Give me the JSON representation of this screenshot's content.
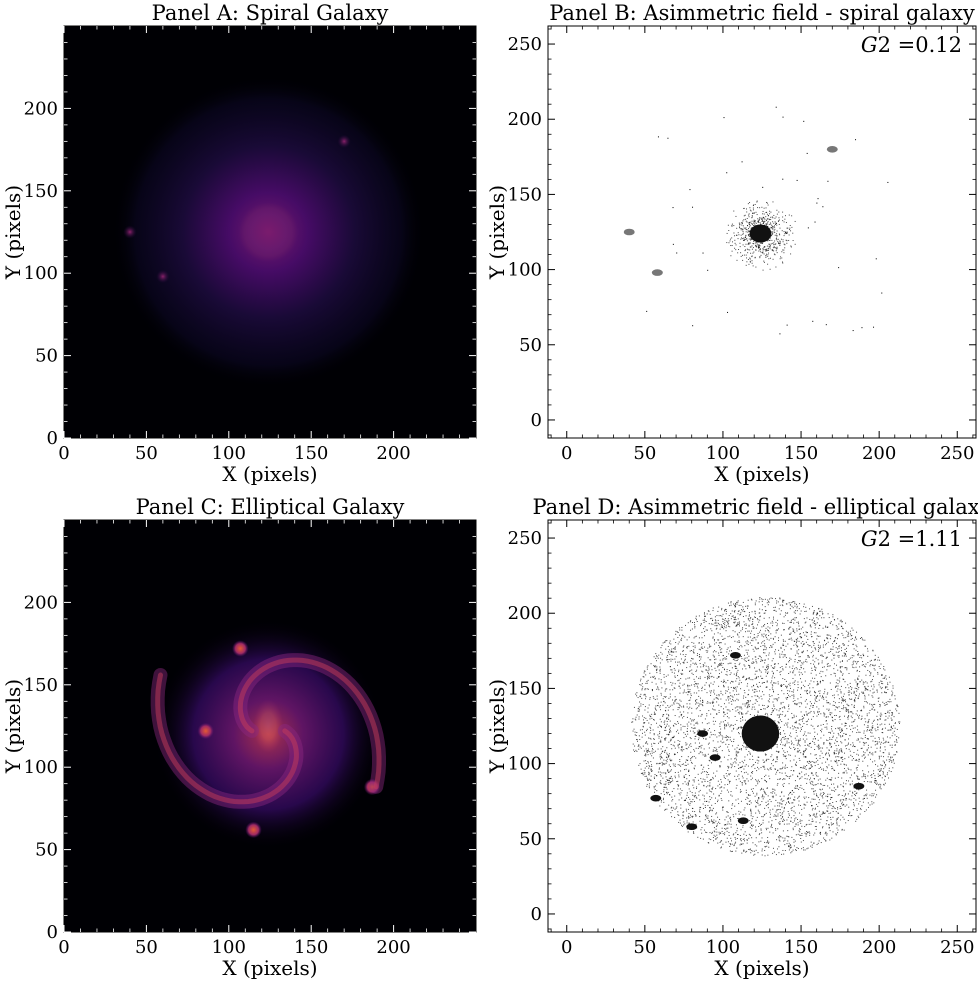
{
  "chart_data": [
    {
      "type": "heatmap",
      "title": "Panel A: Spiral Galaxy",
      "xlabel": "X (pixels)",
      "ylabel": "Y (pixels)",
      "xlim": [
        0,
        250
      ],
      "ylim": [
        0,
        250
      ],
      "xticks": [
        0,
        50,
        100,
        150,
        200
      ],
      "yticks": [
        0,
        50,
        100,
        150,
        200
      ],
      "colormap": "inferno",
      "background_color": "#000004",
      "features": [
        {
          "kind": "core",
          "x": 124,
          "y": 125,
          "radius": 12
        },
        {
          "kind": "halo",
          "x": 124,
          "y": 125,
          "radius": 95
        },
        {
          "kind": "point-source",
          "x": 170,
          "y": 180
        },
        {
          "kind": "point-source",
          "x": 60,
          "y": 98
        },
        {
          "kind": "point-source",
          "x": 40,
          "y": 125
        }
      ]
    },
    {
      "type": "scatter",
      "title": "Panel B: Asimmetric field - spiral galaxy",
      "xlabel": "X (pixels)",
      "ylabel": "Y (pixels)",
      "xlim": [
        -12,
        262
      ],
      "ylim": [
        -12,
        262
      ],
      "xticks": [
        0,
        50,
        100,
        150,
        200,
        250
      ],
      "yticks": [
        0,
        50,
        100,
        150,
        200,
        250
      ],
      "annotation": {
        "symbol": "G",
        "subscript": "2",
        "value": "0.12"
      },
      "features": [
        {
          "kind": "dense-core",
          "x": 124,
          "y": 124,
          "rx": 7,
          "ry": 6
        },
        {
          "kind": "diffuse-cloud",
          "x": 124,
          "y": 124,
          "radius": 25
        },
        {
          "kind": "clump",
          "x": 170,
          "y": 180
        },
        {
          "kind": "clump",
          "x": 58,
          "y": 98
        },
        {
          "kind": "clump",
          "x": 40,
          "y": 125
        }
      ]
    },
    {
      "type": "heatmap",
      "title": "Panel C: Elliptical Galaxy",
      "xlabel": "X (pixels)",
      "ylabel": "Y (pixels)",
      "xlim": [
        0,
        250
      ],
      "ylim": [
        0,
        250
      ],
      "xticks": [
        0,
        50,
        100,
        150,
        200
      ],
      "yticks": [
        0,
        50,
        100,
        150,
        200
      ],
      "colormap": "inferno",
      "background_color": "#000004",
      "features": [
        {
          "kind": "core",
          "x": 124,
          "y": 125,
          "radius": 6
        },
        {
          "kind": "disk",
          "x": 124,
          "y": 120,
          "radius": 70
        },
        {
          "kind": "knot",
          "x": 107,
          "y": 172
        },
        {
          "kind": "knot",
          "x": 86,
          "y": 122
        },
        {
          "kind": "knot",
          "x": 115,
          "y": 62
        },
        {
          "kind": "knot",
          "x": 187,
          "y": 88
        }
      ]
    },
    {
      "type": "scatter",
      "title": "Panel D: Asimmetric field - elliptical galaxy",
      "xlabel": "X (pixels)",
      "ylabel": "Y (pixels)",
      "xlim": [
        -12,
        262
      ],
      "ylim": [
        -12,
        262
      ],
      "xticks": [
        0,
        50,
        100,
        150,
        200,
        250
      ],
      "yticks": [
        0,
        50,
        100,
        150,
        200,
        250
      ],
      "annotation": {
        "symbol": "G",
        "subscript": "2",
        "value": "1.11"
      },
      "features": [
        {
          "kind": "dense-core",
          "x": 124,
          "y": 120,
          "rx": 12,
          "ry": 12
        },
        {
          "kind": "diffuse-cloud",
          "x": 127,
          "y": 125,
          "radius": 86
        },
        {
          "kind": "clump",
          "x": 108,
          "y": 172
        },
        {
          "kind": "clump",
          "x": 87,
          "y": 120
        },
        {
          "kind": "clump",
          "x": 95,
          "y": 104
        },
        {
          "kind": "clump",
          "x": 57,
          "y": 77
        },
        {
          "kind": "clump",
          "x": 113,
          "y": 62
        },
        {
          "kind": "clump",
          "x": 187,
          "y": 85
        },
        {
          "kind": "clump",
          "x": 80,
          "y": 58
        }
      ]
    }
  ]
}
